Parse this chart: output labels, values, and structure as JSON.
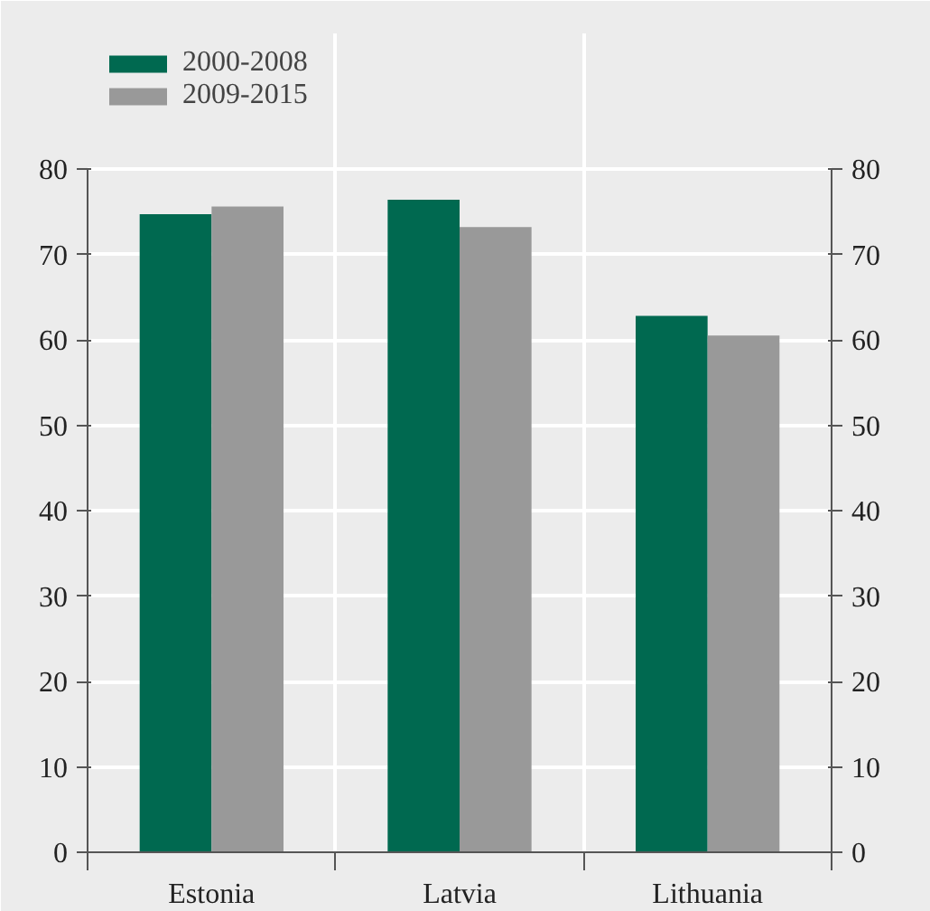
{
  "chart_data": {
    "type": "bar",
    "categories": [
      "Estonia",
      "Latvia",
      "Lithuania"
    ],
    "series": [
      {
        "name": "2000-2008",
        "color": "#006950",
        "values": [
          74.7,
          76.4,
          62.8
        ]
      },
      {
        "name": "2009-2015",
        "color": "#999999",
        "values": [
          75.6,
          73.2,
          60.5
        ]
      }
    ],
    "ylim": [
      0,
      80
    ],
    "yticks": [
      0,
      10,
      20,
      30,
      40,
      50,
      60,
      70,
      80
    ],
    "y2lim": [
      0,
      80
    ],
    "y2ticks": [
      0,
      10,
      20,
      30,
      40,
      50,
      60,
      70,
      80
    ],
    "grid": true,
    "legend": "top left"
  }
}
